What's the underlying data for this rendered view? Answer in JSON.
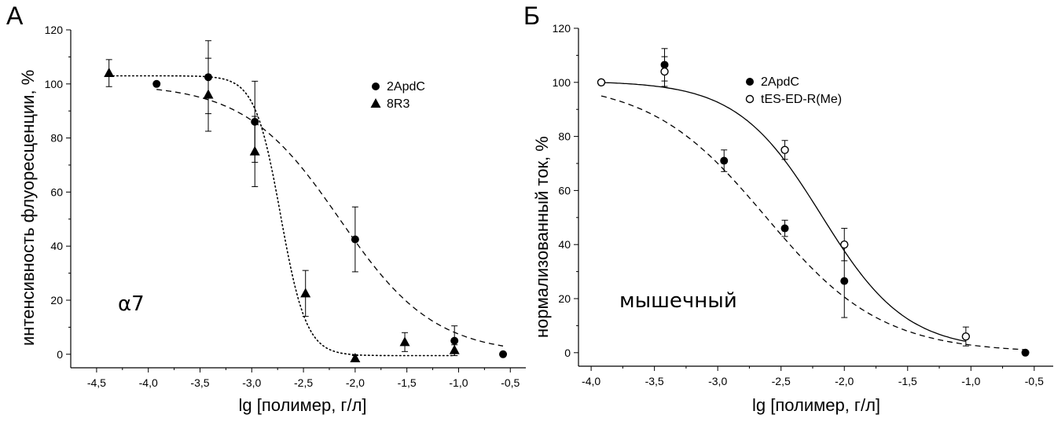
{
  "figure": {
    "panels": [
      {
        "letter": "А",
        "annotation": "α7"
      },
      {
        "letter": "Б",
        "annotation": "мышечный"
      }
    ]
  },
  "chart_data": [
    {
      "type": "scatter",
      "panel": "А",
      "xlabel": "lg [полимер, г/л]",
      "ylabel": "интенсивность флуоресценции, %",
      "xlim": [
        -4.75,
        -0.35
      ],
      "ylim": [
        -5,
        120
      ],
      "x_ticks": [
        -4.5,
        -4.0,
        -3.5,
        -3.0,
        -2.5,
        -2.0,
        -1.5,
        -1.0,
        -0.5
      ],
      "x_tick_labels": [
        "-4,5",
        "-4,0",
        "-3,5",
        "-3,0",
        "-2,5",
        "-2,0",
        "-1,5",
        "-1,0",
        "-0,5"
      ],
      "y_ticks": [
        0,
        20,
        40,
        60,
        80,
        100,
        120
      ],
      "y_tick_labels": [
        "0",
        "20",
        "40",
        "60",
        "80",
        "100",
        "120"
      ],
      "grid": false,
      "legend_position": "top-right",
      "series": [
        {
          "name": "2ApdC",
          "marker": "circle-filled",
          "line": "dashed",
          "x": [
            -3.92,
            -3.42,
            -2.97,
            -2.0,
            -1.04,
            -0.57
          ],
          "y": [
            100,
            102.5,
            86,
            42.5,
            5,
            0
          ],
          "err": [
            0,
            13.5,
            15,
            12,
            5.5,
            0
          ],
          "fit": {
            "model": "hill",
            "top": 100,
            "bottom": 0,
            "logIC50": -2.15,
            "hill": 0.95
          }
        },
        {
          "name": "8R3",
          "marker": "triangle-filled",
          "line": "dotted",
          "x": [
            -4.38,
            -3.42,
            -2.97,
            -2.48,
            -2.0,
            -1.52,
            -1.04
          ],
          "y": [
            104,
            96,
            75,
            22.5,
            -1.5,
            4.5,
            1.5
          ],
          "err": [
            5,
            13.5,
            13,
            8.5,
            1,
            3.5,
            2
          ],
          "fit": {
            "model": "hill",
            "top": 103,
            "bottom": -0.5,
            "logIC50": -2.72,
            "hill": 3.5
          }
        }
      ]
    },
    {
      "type": "scatter",
      "panel": "Б",
      "xlabel": "lg [полимер, г/л]",
      "ylabel": "нормализованный ток, %",
      "xlim": [
        -4.1,
        -0.35
      ],
      "ylim": [
        -5,
        120
      ],
      "x_ticks": [
        -4.0,
        -3.5,
        -3.0,
        -2.5,
        -2.0,
        -1.5,
        -1.0,
        -0.5
      ],
      "x_tick_labels": [
        "-4,0",
        "-3,5",
        "-3,0",
        "-2,5",
        "-2,0",
        "-1,5",
        "-1,0",
        "-0,5"
      ],
      "y_ticks": [
        0,
        20,
        40,
        60,
        80,
        100,
        120
      ],
      "y_tick_labels": [
        "0",
        "20",
        "40",
        "60",
        "80",
        "100",
        "120"
      ],
      "grid": false,
      "legend_position": "top-right",
      "series": [
        {
          "name": "2ApdC",
          "marker": "circle-filled",
          "line": "dashed",
          "x": [
            -3.92,
            -3.42,
            -2.95,
            -2.47,
            -2.0,
            -0.57
          ],
          "y": [
            100,
            106.5,
            71,
            46,
            26.5,
            0
          ],
          "err": [
            0,
            6,
            4,
            3,
            13.5,
            0
          ],
          "fit": {
            "model": "hill",
            "top": 100.5,
            "bottom": 0,
            "logIC50": -2.62,
            "hill": 0.95
          }
        },
        {
          "name": "tES-ED-R(Me)",
          "marker": "circle-open",
          "line": "solid",
          "x": [
            -3.92,
            -3.42,
            -2.47,
            -2.0,
            -1.04
          ],
          "y": [
            100,
            104,
            75,
            40,
            6
          ],
          "err": [
            0,
            5.5,
            3.5,
            6,
            3.5
          ],
          "fit": {
            "model": "hill",
            "top": 100.5,
            "bottom": 1,
            "logIC50": -2.18,
            "hill": 1.3
          }
        }
      ]
    }
  ]
}
